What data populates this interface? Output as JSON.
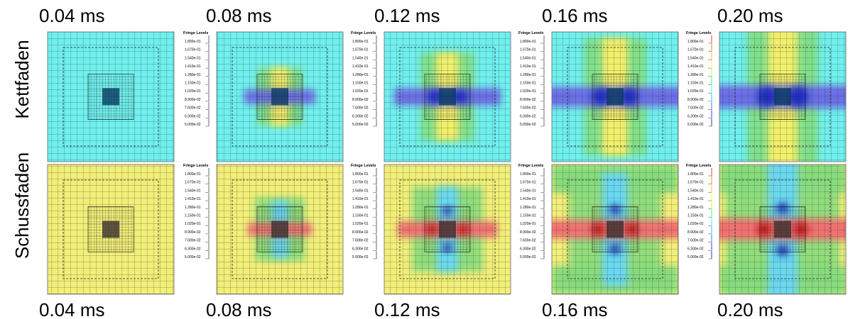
{
  "top_labels": [
    "0.04 ms",
    "0.08 ms",
    "0.12 ms",
    "0.16 ms",
    "0.20 ms"
  ],
  "bottom_labels": [
    "0.04 ms",
    "0.08 ms",
    "0.12 ms",
    "0.16 ms",
    "0.20 ms"
  ],
  "row_labels": [
    "Kettfaden",
    "Schussfaden"
  ],
  "legend": {
    "title": "Fringe Levels",
    "levels": [
      "1.800e-01",
      "1.670e-01",
      "1.540e-01",
      "1.410e-01",
      "1.280e-01",
      "1.150e-01",
      "1.020e-01",
      "8.900e-02",
      "7.600e-02",
      "6.300e-02",
      "5.000e-02"
    ]
  }
}
